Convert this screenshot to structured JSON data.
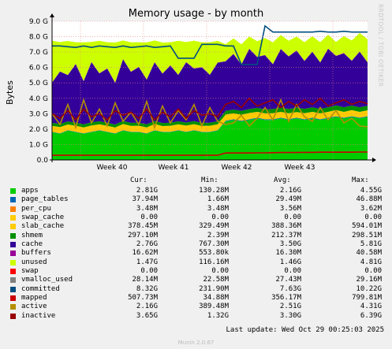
{
  "watermark": "RRDTOOL / TOBI OETIKER",
  "footer": {
    "last_update": "Last update: Wed Oct 29 00:25:03 2025",
    "version": "Munin 2.0.67"
  },
  "legend": {
    "headers": [
      "Cur:",
      "Min:",
      "Avg:",
      "Max:"
    ],
    "rows": [
      {
        "name": "apps",
        "color": "#00cc00",
        "cur": "2.81G",
        "min": "130.28M",
        "avg": "2.16G",
        "max": "4.55G"
      },
      {
        "name": "page_tables",
        "color": "#0066b3",
        "cur": "37.94M",
        "min": "1.66M",
        "avg": "29.49M",
        "max": "46.88M"
      },
      {
        "name": "per_cpu",
        "color": "#ff8000",
        "cur": "3.48M",
        "min": "3.48M",
        "avg": "3.56M",
        "max": "3.62M"
      },
      {
        "name": "swap_cache",
        "color": "#ffcc00",
        "cur": "0.00",
        "min": "0.00",
        "avg": "0.00",
        "max": "0.00"
      },
      {
        "name": "slab_cache",
        "color": "#ffcc00",
        "cur": "378.45M",
        "min": "329.49M",
        "avg": "388.36M",
        "max": "594.01M"
      },
      {
        "name": "shmem",
        "color": "#008f00",
        "cur": "297.10M",
        "min": "2.39M",
        "avg": "212.37M",
        "max": "298.51M"
      },
      {
        "name": "cache",
        "color": "#330099",
        "cur": "2.76G",
        "min": "767.30M",
        "avg": "3.50G",
        "max": "5.81G"
      },
      {
        "name": "buffers",
        "color": "#990099",
        "cur": "16.62M",
        "min": "553.80k",
        "avg": "16.30M",
        "max": "40.58M"
      },
      {
        "name": "unused",
        "color": "#ccff00",
        "cur": "1.47G",
        "min": "116.16M",
        "avg": "1.46G",
        "max": "4.81G"
      },
      {
        "name": "swap",
        "color": "#ff0000",
        "cur": "0.00",
        "min": "0.00",
        "avg": "0.00",
        "max": "0.00"
      },
      {
        "name": "vmalloc_used",
        "color": "#808080",
        "cur": "28.14M",
        "min": "22.58M",
        "avg": "27.43M",
        "max": "29.16M"
      },
      {
        "name": "committed",
        "color": "#004d80",
        "cur": "8.32G",
        "min": "231.90M",
        "avg": "7.63G",
        "max": "10.22G"
      },
      {
        "name": "mapped",
        "color": "#cc0000",
        "cur": "507.73M",
        "min": "34.88M",
        "avg": "356.17M",
        "max": "799.81M"
      },
      {
        "name": "active",
        "color": "#b38f00",
        "cur": "2.16G",
        "min": "389.48M",
        "avg": "2.51G",
        "max": "4.31G"
      },
      {
        "name": "inactive",
        "color": "#990000",
        "cur": "3.65G",
        "min": "1.32G",
        "avg": "3.30G",
        "max": "6.39G"
      }
    ]
  },
  "chart_data": {
    "type": "area",
    "title": "Memory usage - by month",
    "ylabel": "Bytes",
    "y_unit": "G",
    "ylim": [
      0,
      9
    ],
    "y_ticks": [
      0,
      1,
      2,
      3,
      4,
      5,
      6,
      7,
      8,
      9
    ],
    "y_tick_labels": [
      "0.0",
      "1.0 G",
      "2.0 G",
      "3.0 G",
      "4.0 G",
      "5.0 G",
      "6.0 G",
      "7.0 G",
      "8.0 G",
      "9.0 G"
    ],
    "x_tick_labels": [
      "Week 40",
      "Week 41",
      "Week 42",
      "Week 43"
    ],
    "x_label_positions": [
      0.19,
      0.385,
      0.585,
      0.785
    ],
    "grid": true,
    "stacked_series": [
      {
        "name": "apps",
        "color": "#00cc00",
        "values": [
          1.8,
          1.7,
          1.9,
          1.8,
          1.7,
          1.8,
          1.9,
          1.8,
          1.7,
          1.9,
          1.8,
          1.8,
          1.7,
          1.9,
          1.8,
          1.8,
          1.9,
          1.8,
          1.9,
          1.8,
          1.8,
          1.9,
          2.5,
          2.6,
          2.5,
          2.6,
          2.7,
          2.6,
          2.6,
          2.7,
          2.6,
          2.7,
          2.6,
          2.7,
          2.6,
          2.7,
          2.8,
          2.7,
          2.8,
          2.7,
          2.8
        ]
      },
      {
        "name": "page_tables",
        "color": "#0066b3",
        "values": [
          0.03,
          0.03,
          0.03,
          0.03,
          0.03,
          0.03,
          0.03,
          0.03,
          0.03,
          0.03,
          0.03,
          0.03,
          0.03,
          0.03,
          0.03,
          0.03,
          0.03,
          0.03,
          0.03,
          0.03,
          0.03,
          0.03,
          0.04,
          0.04,
          0.04,
          0.04,
          0.04,
          0.04,
          0.04,
          0.04,
          0.04,
          0.04,
          0.04,
          0.04,
          0.04,
          0.04,
          0.04,
          0.04,
          0.04,
          0.04,
          0.04
        ]
      },
      {
        "name": "slab_cache",
        "color": "#ffcc00",
        "values": [
          0.38,
          0.4,
          0.37,
          0.39,
          0.38,
          0.41,
          0.38,
          0.39,
          0.37,
          0.4,
          0.38,
          0.39,
          0.38,
          0.4,
          0.37,
          0.39,
          0.38,
          0.4,
          0.39,
          0.38,
          0.39,
          0.38,
          0.4,
          0.38,
          0.39,
          0.41,
          0.38,
          0.39,
          0.4,
          0.38,
          0.39,
          0.37,
          0.4,
          0.38,
          0.39,
          0.38,
          0.4,
          0.38,
          0.39,
          0.38,
          0.38
        ]
      },
      {
        "name": "shmem",
        "color": "#008f00",
        "values": [
          0.2,
          0.2,
          0.2,
          0.2,
          0.2,
          0.2,
          0.2,
          0.2,
          0.2,
          0.2,
          0.2,
          0.2,
          0.2,
          0.2,
          0.2,
          0.2,
          0.2,
          0.2,
          0.2,
          0.2,
          0.2,
          0.2,
          0.25,
          0.25,
          0.25,
          0.25,
          0.26,
          0.26,
          0.27,
          0.27,
          0.28,
          0.28,
          0.28,
          0.29,
          0.29,
          0.29,
          0.3,
          0.3,
          0.3,
          0.3,
          0.3
        ]
      },
      {
        "name": "cache",
        "color": "#330099",
        "values": [
          2.6,
          3.4,
          3.0,
          3.8,
          2.8,
          3.9,
          3.1,
          3.5,
          2.7,
          4.0,
          3.3,
          3.6,
          2.9,
          3.8,
          3.2,
          3.7,
          3.0,
          3.9,
          3.4,
          3.6,
          3.1,
          3.8,
          3.2,
          3.6,
          3.0,
          3.9,
          3.3,
          3.5,
          2.9,
          3.8,
          3.4,
          3.7,
          3.1,
          3.6,
          3.0,
          3.8,
          3.2,
          3.5,
          2.9,
          3.6,
          2.8
        ]
      },
      {
        "name": "buffers",
        "color": "#990099",
        "values": [
          0.02,
          0.02,
          0.02,
          0.02,
          0.02,
          0.02,
          0.02,
          0.02,
          0.02,
          0.02,
          0.02,
          0.02,
          0.02,
          0.02,
          0.02,
          0.02,
          0.02,
          0.02,
          0.02,
          0.02,
          0.02,
          0.02,
          0.02,
          0.02,
          0.02,
          0.02,
          0.02,
          0.02,
          0.02,
          0.02,
          0.02,
          0.02,
          0.02,
          0.02,
          0.02,
          0.02,
          0.02,
          0.02,
          0.02,
          0.02,
          0.02
        ]
      },
      {
        "name": "unused",
        "color": "#ccff00",
        "values": [
          2.7,
          1.9,
          2.2,
          1.4,
          2.5,
          1.3,
          2.1,
          1.7,
          2.6,
          1.2,
          1.9,
          1.6,
          2.4,
          1.4,
          2.0,
          1.5,
          2.2,
          1.3,
          1.8,
          1.6,
          2.1,
          1.4,
          1.1,
          1.0,
          1.3,
          0.8,
          1.0,
          1.1,
          1.4,
          0.9,
          1.0,
          0.9,
          1.2,
          1.0,
          1.3,
          0.9,
          0.9,
          1.1,
          1.3,
          1.2,
          1.5
        ]
      }
    ],
    "line_series": [
      {
        "name": "committed",
        "color": "#004d80",
        "values": [
          7.4,
          7.4,
          7.35,
          7.3,
          7.4,
          7.3,
          7.4,
          7.35,
          7.3,
          7.4,
          7.3,
          7.35,
          7.4,
          7.3,
          7.35,
          7.4,
          6.6,
          6.6,
          6.6,
          7.5,
          7.5,
          7.5,
          7.4,
          7.4,
          6.2,
          6.2,
          6.2,
          8.7,
          8.3,
          8.3,
          8.3,
          8.3,
          8.3,
          8.3,
          8.35,
          8.3,
          8.3,
          8.35,
          8.3,
          8.3,
          8.3
        ]
      },
      {
        "name": "mapped",
        "color": "#cc0000",
        "values": [
          0.3,
          0.3,
          0.3,
          0.3,
          0.3,
          0.3,
          0.3,
          0.3,
          0.3,
          0.3,
          0.3,
          0.3,
          0.3,
          0.3,
          0.3,
          0.3,
          0.3,
          0.3,
          0.3,
          0.3,
          0.3,
          0.3,
          0.45,
          0.45,
          0.45,
          0.45,
          0.46,
          0.46,
          0.47,
          0.48,
          0.48,
          0.48,
          0.49,
          0.49,
          0.5,
          0.5,
          0.5,
          0.5,
          0.5,
          0.51,
          0.51
        ]
      },
      {
        "name": "active",
        "color": "#b38f00",
        "values": [
          3.0,
          2.3,
          3.6,
          2.1,
          3.9,
          2.4,
          3.3,
          2.2,
          3.7,
          2.5,
          3.1,
          2.3,
          3.8,
          2.1,
          3.5,
          2.4,
          3.2,
          2.6,
          3.6,
          2.2,
          3.4,
          2.5,
          2.3,
          2.4,
          2.9,
          2.2,
          2.7,
          3.4,
          2.6,
          3.9,
          2.5,
          3.6,
          2.8,
          2.5,
          3.4,
          2.6,
          3.2,
          2.4,
          2.7,
          2.2,
          2.16
        ]
      },
      {
        "name": "inactive",
        "color": "#990000",
        "values": [
          3.0,
          2.7,
          3.2,
          2.6,
          3.3,
          2.8,
          3.0,
          2.6,
          3.2,
          2.9,
          3.1,
          2.7,
          3.3,
          2.6,
          3.1,
          2.8,
          3.3,
          2.7,
          3.2,
          2.9,
          3.0,
          2.8,
          3.6,
          3.8,
          3.4,
          4.0,
          3.5,
          3.7,
          3.9,
          3.4,
          3.8,
          3.5,
          3.9,
          3.6,
          4.0,
          3.5,
          3.7,
          3.9,
          3.6,
          3.8,
          3.65
        ]
      }
    ]
  }
}
